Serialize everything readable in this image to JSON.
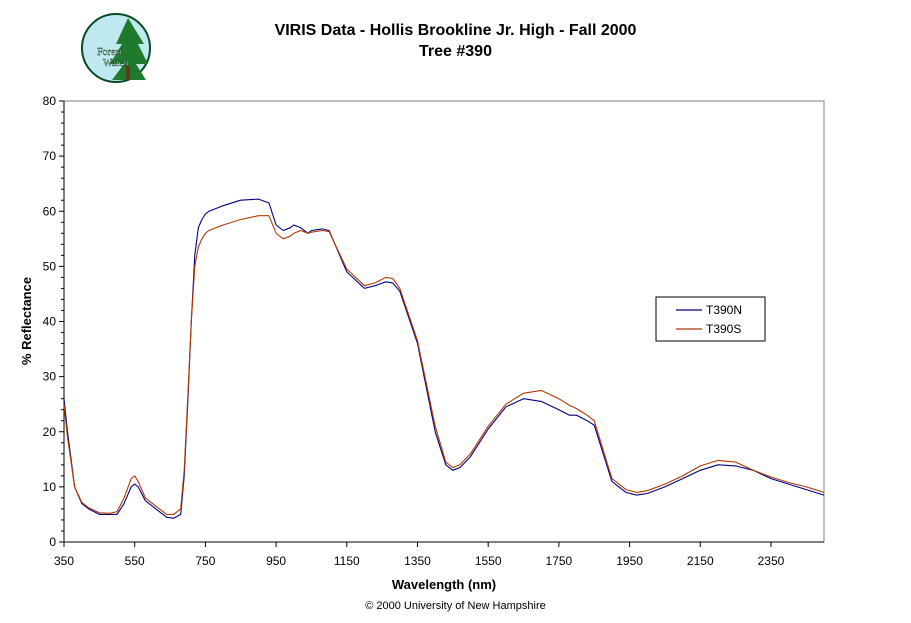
{
  "logo": {
    "line1": "Forest",
    "line2": "Watch"
  },
  "footer": "© 2000 University of New Hampshire",
  "chart_data": {
    "type": "line",
    "title": "VIRIS Data - Hollis Brookline Jr. High - Fall 2000",
    "subtitle": "Tree #390",
    "xlabel": "Wavelength (nm)",
    "ylabel": "% Reflectance",
    "xlim": [
      350,
      2500
    ],
    "ylim": [
      0,
      80
    ],
    "xticks": [
      350,
      550,
      750,
      950,
      1150,
      1350,
      1550,
      1750,
      1950,
      2150,
      2350
    ],
    "yticks": [
      0,
      10,
      20,
      30,
      40,
      50,
      60,
      70,
      80
    ],
    "grid": false,
    "legend_position": "right",
    "colors": {
      "T390N": "#00007f",
      "T390S": "#b23800"
    },
    "series": [
      {
        "name": "T390N",
        "x": [
          350,
          360,
          370,
          380,
          400,
          420,
          450,
          480,
          500,
          520,
          540,
          550,
          560,
          580,
          600,
          640,
          660,
          680,
          690,
          700,
          710,
          720,
          730,
          740,
          750,
          760,
          800,
          850,
          900,
          930,
          950,
          970,
          990,
          1000,
          1020,
          1040,
          1050,
          1080,
          1100,
          1150,
          1200,
          1230,
          1260,
          1280,
          1300,
          1350,
          1400,
          1430,
          1450,
          1470,
          1500,
          1550,
          1600,
          1650,
          1700,
          1750,
          1780,
          1800,
          1830,
          1850,
          1900,
          1940,
          1970,
          2000,
          2050,
          2100,
          2150,
          2200,
          2250,
          2300,
          2350,
          2400,
          2450,
          2500
        ],
        "y": [
          26,
          20,
          15,
          10,
          7,
          6,
          5,
          5,
          5,
          7,
          10,
          10.5,
          10,
          7.5,
          6.5,
          4.5,
          4.3,
          5,
          12,
          25,
          40,
          52,
          57,
          58.5,
          59.5,
          60,
          61,
          62,
          62.2,
          61.5,
          57.5,
          56.5,
          57,
          57.5,
          57,
          56,
          56.5,
          56.8,
          56.5,
          49,
          46,
          46.5,
          47.2,
          47,
          45.5,
          36,
          20,
          14,
          13,
          13.5,
          15.5,
          20.5,
          24.5,
          26,
          25.5,
          24,
          23,
          23,
          22,
          21.2,
          11,
          9,
          8.5,
          8.8,
          10,
          11.5,
          13,
          14,
          13.8,
          13,
          11.5,
          10.5,
          9.5,
          8.5
        ]
      },
      {
        "name": "T390S",
        "x": [
          350,
          360,
          370,
          380,
          400,
          420,
          450,
          480,
          500,
          520,
          540,
          550,
          560,
          580,
          600,
          640,
          660,
          680,
          690,
          700,
          710,
          720,
          730,
          740,
          750,
          760,
          800,
          850,
          900,
          930,
          950,
          970,
          990,
          1000,
          1020,
          1040,
          1050,
          1080,
          1100,
          1150,
          1200,
          1230,
          1260,
          1280,
          1300,
          1350,
          1400,
          1430,
          1450,
          1470,
          1500,
          1550,
          1600,
          1650,
          1700,
          1750,
          1780,
          1800,
          1830,
          1850,
          1900,
          1940,
          1970,
          2000,
          2050,
          2100,
          2150,
          2200,
          2250,
          2300,
          2350,
          2400,
          2450,
          2500
        ],
        "y": [
          25,
          19,
          14.5,
          10,
          7.2,
          6.2,
          5.3,
          5.2,
          5.5,
          8,
          11.5,
          12,
          11,
          8,
          7,
          5,
          5,
          6,
          13,
          26,
          40,
          50,
          53.5,
          55,
          56,
          56.5,
          57.5,
          58.5,
          59.2,
          59.2,
          56,
          55,
          55.5,
          56,
          56.5,
          56,
          56.2,
          56.5,
          56.3,
          49.5,
          46.5,
          47,
          48,
          47.8,
          46,
          36.5,
          21,
          14.5,
          13.5,
          14,
          16,
          21,
          25,
          27,
          27.5,
          26,
          24.8,
          24.2,
          23,
          22,
          11.5,
          9.5,
          9,
          9.3,
          10.5,
          12,
          13.8,
          14.8,
          14.5,
          13,
          11.8,
          10.8,
          10,
          9
        ]
      }
    ]
  }
}
